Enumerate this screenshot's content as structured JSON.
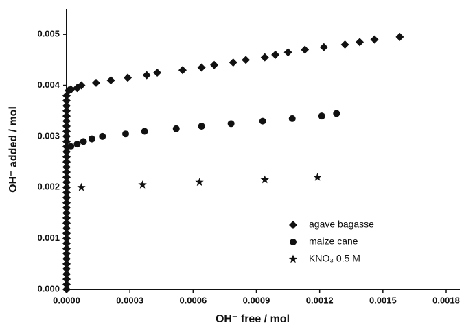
{
  "chart_data": {
    "type": "scatter",
    "x_label": "OH⁻ free / mol",
    "y_label": "OH⁻ added / mol",
    "xlim": [
      0,
      0.0018
    ],
    "ylim": [
      0,
      0.0055
    ],
    "xticks": [
      {
        "value": 0,
        "label": "0.0000"
      },
      0.0003,
      0.0006,
      0.0009,
      0.0012,
      0.0015,
      0.0018
    ],
    "yticks": [
      {
        "value": 0,
        "label": "0.000"
      },
      0.001,
      0.002,
      0.003,
      0.004,
      0.005
    ],
    "legend": "lower right",
    "series": [
      {
        "name": "agave bagasse",
        "color": "#111111",
        "marker": "diamond",
        "x": [
          0,
          0,
          0,
          0,
          0,
          0,
          0,
          0,
          0,
          0,
          0,
          0,
          0,
          0,
          0,
          0,
          0,
          0,
          0,
          0,
          0,
          0,
          0,
          0,
          0,
          0,
          0,
          0,
          0,
          0,
          0,
          0,
          0,
          0,
          0,
          0,
          0,
          0,
          0,
          1e-05,
          2e-05,
          5e-05,
          7e-05,
          0.00014,
          0.00021,
          0.00029,
          0.00038,
          0.00043,
          0.00055,
          0.00064,
          0.0007,
          0.00079,
          0.00085,
          0.00094,
          0.00099,
          0.00105,
          0.00113,
          0.00122,
          0.00132,
          0.00139,
          0.00146,
          0.00158
        ],
        "y": [
          0,
          0.0001,
          0.0002,
          0.0003,
          0.0004,
          0.0005,
          0.0006,
          0.0007,
          0.0008,
          0.0009,
          0.001,
          0.0011,
          0.0012,
          0.0013,
          0.0014,
          0.0015,
          0.0016,
          0.0017,
          0.0018,
          0.0019,
          0.002,
          0.0021,
          0.0022,
          0.0023,
          0.0024,
          0.0025,
          0.0026,
          0.0027,
          0.0028,
          0.0029,
          0.003,
          0.0031,
          0.0032,
          0.0033,
          0.0034,
          0.0035,
          0.0036,
          0.0037,
          0.0038,
          0.0039,
          0.00392,
          0.00395,
          0.004,
          0.00405,
          0.0041,
          0.00415,
          0.0042,
          0.00425,
          0.0043,
          0.00435,
          0.0044,
          0.00445,
          0.0045,
          0.00455,
          0.0046,
          0.00465,
          0.0047,
          0.00475,
          0.0048,
          0.00485,
          0.0049,
          0.00495
        ]
      },
      {
        "name": "maize cane",
        "color": "#111111",
        "marker": "circle",
        "x": [
          2e-05,
          5e-05,
          8e-05,
          0.00012,
          0.00017,
          0.00028,
          0.00037,
          0.00052,
          0.00064,
          0.00078,
          0.00093,
          0.00107,
          0.00121,
          0.00128
        ],
        "y": [
          0.0028,
          0.00285,
          0.0029,
          0.00295,
          0.003,
          0.00305,
          0.0031,
          0.00315,
          0.0032,
          0.00325,
          0.0033,
          0.00335,
          0.0034,
          0.00345
        ]
      },
      {
        "name": "KNO₃ 0.5 M",
        "color": "#111111",
        "marker": "star",
        "x": [
          7e-05,
          0.00036,
          0.00063,
          0.00094,
          0.00119
        ],
        "y": [
          0.002,
          0.00205,
          0.0021,
          0.00215,
          0.0022
        ]
      }
    ]
  }
}
